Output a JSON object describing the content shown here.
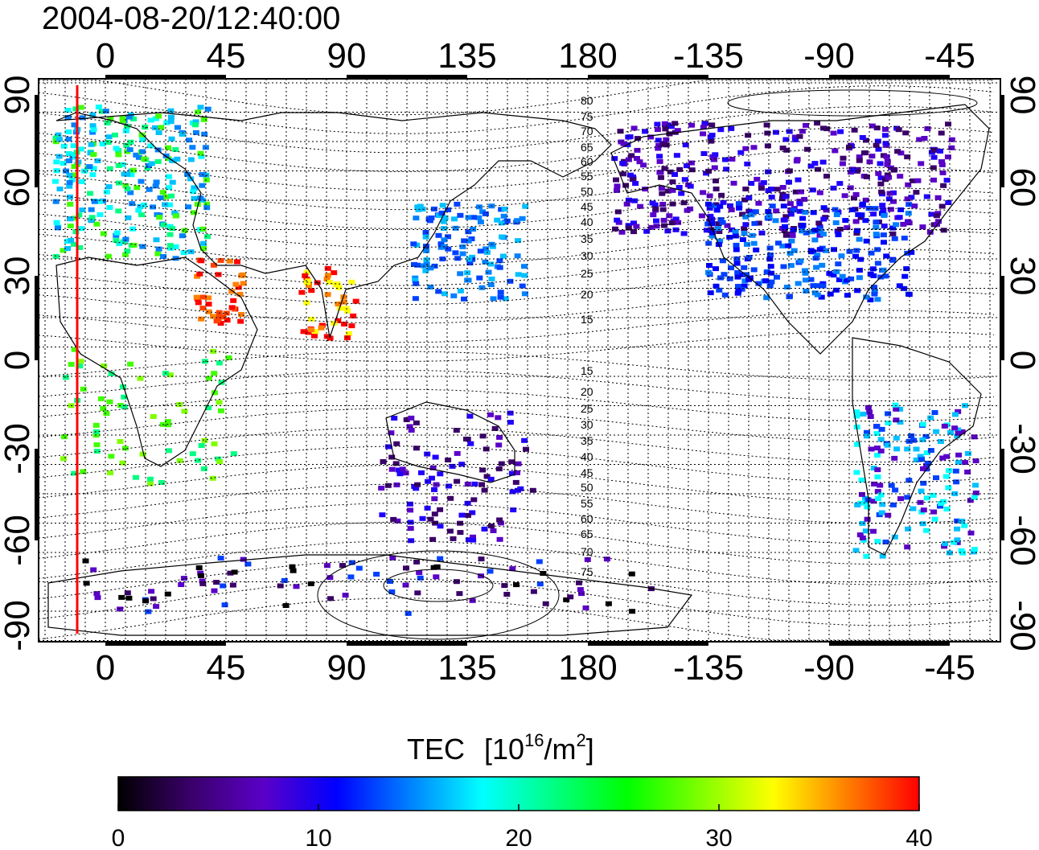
{
  "map": {
    "timestamp": "2004-08-20/12:40:00",
    "lon_ticks": [
      "0",
      "45",
      "90",
      "135",
      "180",
      "-135",
      "-90",
      "-45"
    ],
    "lat_ticks_left": [
      "90",
      "60",
      "30",
      "0",
      "-30",
      "-60",
      "-90"
    ],
    "lat_ticks_right": [
      "90",
      "60",
      "30",
      "0",
      "-30",
      "-60",
      "-90"
    ],
    "contour_labels_north": [
      "80",
      "75",
      "70",
      "65",
      "60",
      "55",
      "50",
      "45",
      "40",
      "35",
      "30",
      "25",
      "20",
      "15"
    ],
    "contour_labels_south": [
      "15",
      "20",
      "25",
      "30",
      "35",
      "40",
      "45",
      "50",
      "55",
      "60",
      "65",
      "70",
      "75"
    ],
    "sun_line_color": "#ff0000",
    "grid": true
  },
  "colorbar": {
    "title": "TEC",
    "unit_prefix": "[10",
    "unit_exp": "16",
    "unit_mid": "/m",
    "unit_exp2": "2",
    "unit_suffix": "]",
    "ticks": [
      "0",
      "10",
      "20",
      "30",
      "40"
    ],
    "range": [
      0,
      40
    ],
    "colors": [
      "#000000",
      "#3a006a",
      "#5a00c8",
      "#0000ff",
      "#0080ff",
      "#00ffff",
      "#00ff80",
      "#00ff00",
      "#80ff00",
      "#ffff00",
      "#ff8000",
      "#ff0000"
    ]
  }
}
